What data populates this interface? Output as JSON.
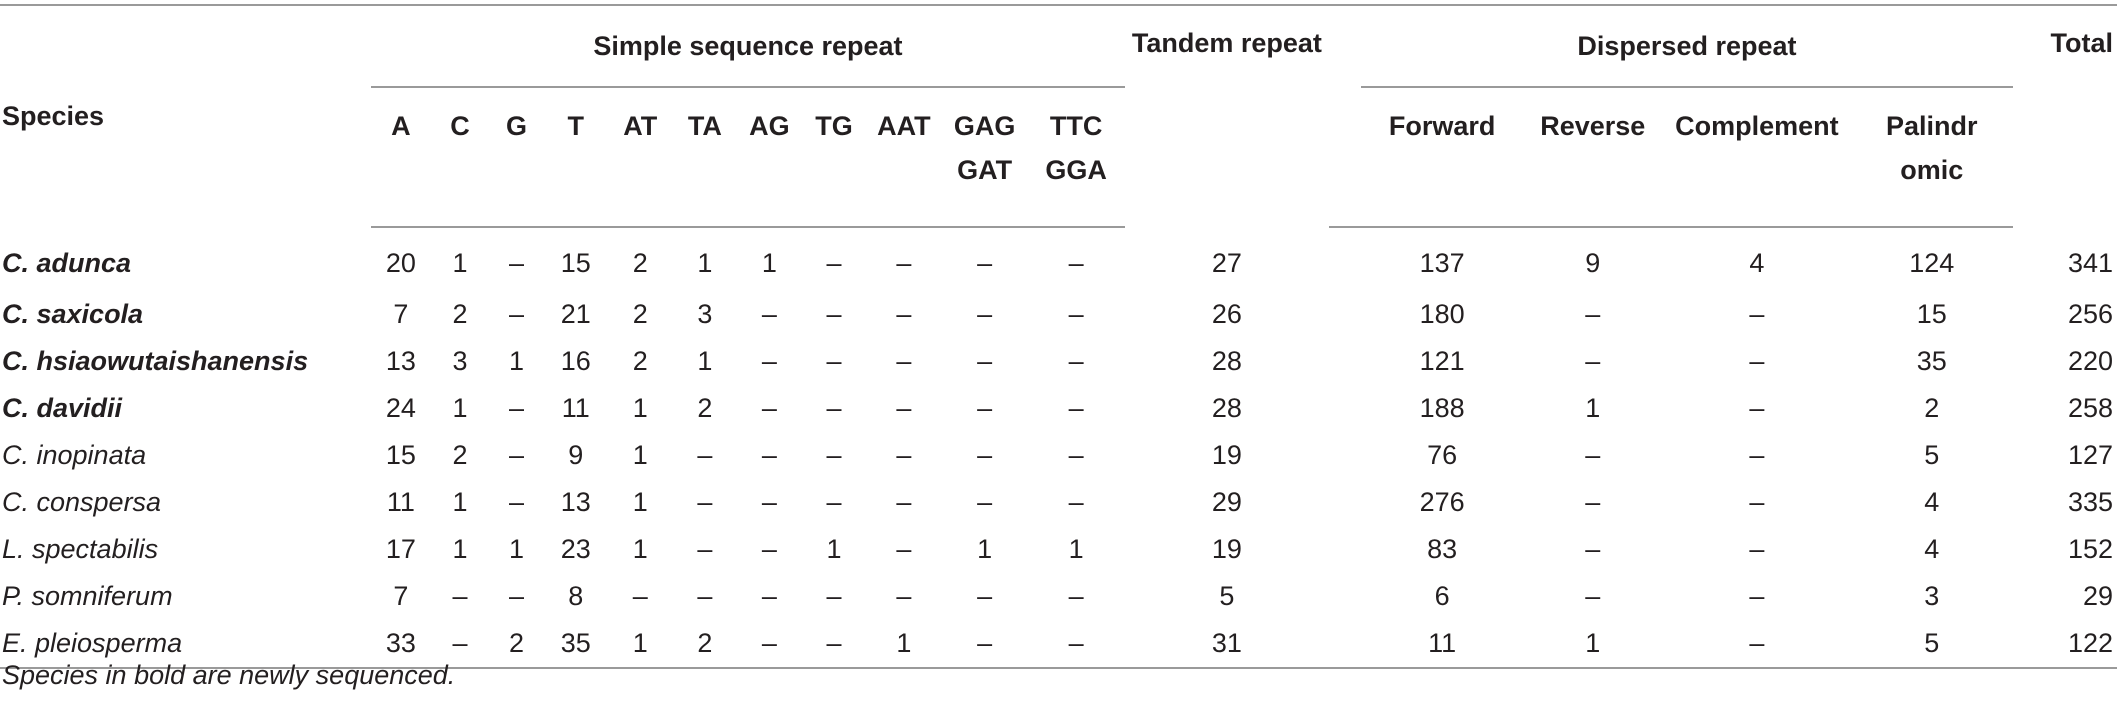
{
  "header": {
    "species": "Species",
    "ssr": "Simple sequence repeat",
    "tandem": "Tandem repeat",
    "dispersed": "Dispersed repeat",
    "total": "Total",
    "ssr_cols": [
      "A",
      "C",
      "G",
      "T",
      "AT",
      "TA",
      "AG",
      "TG",
      "AAT"
    ],
    "gag1": "GAG",
    "gag2": "GAT",
    "ttc1": "TTC",
    "ttc2": "GGA",
    "forward": "Forward",
    "reverse": "Reverse",
    "complement": "Complement",
    "palin1": "Palindr",
    "palin2": "omic"
  },
  "rows": [
    {
      "species": "C. adunca",
      "bold": true,
      "cells": [
        "20",
        "1",
        "–",
        "15",
        "2",
        "1",
        "1",
        "–",
        "–",
        "–",
        "–",
        "27",
        "137",
        "9",
        "4",
        "124",
        "341"
      ]
    },
    {
      "species": "C. saxicola",
      "bold": true,
      "cells": [
        "7",
        "2",
        "–",
        "21",
        "2",
        "3",
        "–",
        "–",
        "–",
        "–",
        "–",
        "26",
        "180",
        "–",
        "–",
        "15",
        "256"
      ]
    },
    {
      "species": "C. hsiaowutaishanensis",
      "bold": true,
      "cells": [
        "13",
        "3",
        "1",
        "16",
        "2",
        "1",
        "–",
        "–",
        "–",
        "–",
        "–",
        "28",
        "121",
        "–",
        "–",
        "35",
        "220"
      ]
    },
    {
      "species": "C. davidii",
      "bold": true,
      "cells": [
        "24",
        "1",
        "–",
        "11",
        "1",
        "2",
        "–",
        "–",
        "–",
        "–",
        "–",
        "28",
        "188",
        "1",
        "–",
        "2",
        "258"
      ]
    },
    {
      "species": "C. inopinata",
      "bold": false,
      "cells": [
        "15",
        "2",
        "–",
        "9",
        "1",
        "–",
        "–",
        "–",
        "–",
        "–",
        "–",
        "19",
        "76",
        "–",
        "–",
        "5",
        "127"
      ]
    },
    {
      "species": "C. conspersa",
      "bold": false,
      "cells": [
        "11",
        "1",
        "–",
        "13",
        "1",
        "–",
        "–",
        "–",
        "–",
        "–",
        "–",
        "29",
        "276",
        "–",
        "–",
        "4",
        "335"
      ]
    },
    {
      "species": "L. spectabilis",
      "bold": false,
      "cells": [
        "17",
        "1",
        "1",
        "23",
        "1",
        "–",
        "–",
        "1",
        "–",
        "1",
        "1",
        "19",
        "83",
        "–",
        "–",
        "4",
        "152"
      ]
    },
    {
      "species": "P. somniferum",
      "bold": false,
      "cells": [
        "7",
        "–",
        "–",
        "8",
        "–",
        "–",
        "–",
        "–",
        "–",
        "–",
        "–",
        "5",
        "6",
        "–",
        "–",
        "3",
        "29"
      ]
    },
    {
      "species": "E. pleiosperma",
      "bold": false,
      "cells": [
        "33",
        "–",
        "2",
        "35",
        "1",
        "2",
        "–",
        "–",
        "1",
        "–",
        "–",
        "31",
        "11",
        "1",
        "–",
        "5",
        "122"
      ]
    }
  ],
  "footnote": "Species in bold are newly sequenced."
}
